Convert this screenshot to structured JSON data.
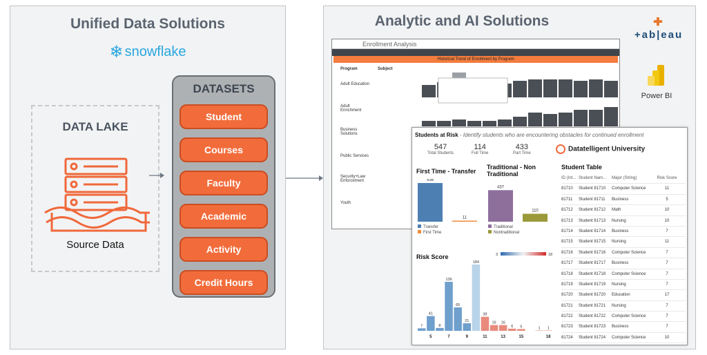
{
  "left_panel": {
    "title": "Unified Data Solutions",
    "brand": "snowflake",
    "lake_title": "DATA LAKE",
    "lake_caption": "Source Data",
    "datasets_title": "DATASETS",
    "datasets": [
      "Student",
      "Courses",
      "Faculty",
      "Academic",
      "Activity",
      "Credit Hours"
    ]
  },
  "right_panel": {
    "title": "Analytic and AI Solutions",
    "tools": [
      "+ab|eau",
      "Power BI"
    ]
  },
  "enrollment": {
    "title": "Enrollment Analysis",
    "banner": "Historical Trend of Enrollment by Program",
    "col_program": "Program",
    "col_subject": "Subject",
    "programs": [
      "Adult Education",
      "Adult Enrichment",
      "Business Solutions",
      "Public Services",
      "Security+Law Enforcement",
      "Youth"
    ]
  },
  "risk": {
    "header_bold": "Students at Risk",
    "header_note": " - Identify students who are encountering obstacles for continued enrollment",
    "kpis": [
      {
        "value": "547",
        "label": "Total Students"
      },
      {
        "value": "114",
        "label": "Full Time"
      },
      {
        "value": "433",
        "label": "Part Time"
      }
    ],
    "university": "Datatelligent University",
    "ft_title": "First Time - Transfer",
    "trad_title": "Traditional - Non Traditional",
    "risk_title": "Risk Score",
    "table_title": "Student Table",
    "legend_scale": [
      "3",
      "18"
    ]
  },
  "chart_data": [
    {
      "type": "bar",
      "title": "First Time - Transfer",
      "categories": [
        "Transfer",
        "First Time"
      ],
      "values": [
        536,
        11
      ],
      "colors": [
        "#4e7fb3",
        "#f28a3a"
      ]
    },
    {
      "type": "bar",
      "title": "Traditional - Non Traditional",
      "categories": [
        "Traditional",
        "Nontraditional"
      ],
      "values": [
        437,
        110
      ],
      "colors": [
        "#8e6f9c",
        "#9a9a3a"
      ]
    },
    {
      "type": "bar",
      "title": "Risk Score",
      "x": [
        4,
        5,
        6,
        7,
        8,
        9,
        10,
        11,
        12,
        13,
        14,
        15,
        16,
        17,
        18
      ],
      "values": [
        7,
        41,
        8,
        136,
        65,
        21,
        184,
        39,
        16,
        16,
        6,
        5,
        0,
        1,
        1
      ],
      "tick_labels": [
        "5",
        "7",
        "9",
        "11",
        "13",
        "15",
        "18"
      ]
    }
  ],
  "student_table": {
    "headers": [
      "ID (Int...",
      "Student Nam...",
      "Major (String)",
      "Risk Score"
    ],
    "rows": [
      [
        "81710",
        "Student 81710",
        "Computer Science",
        "11"
      ],
      [
        "81711",
        "Student 81711",
        "Business",
        "5"
      ],
      [
        "81712",
        "Student 81712",
        "Math",
        "10"
      ],
      [
        "81713",
        "Student 81713",
        "Nursing",
        "10"
      ],
      [
        "81714",
        "Student 81714",
        "Business",
        "7"
      ],
      [
        "81715",
        "Student 81715",
        "Nursing",
        "11"
      ],
      [
        "81716",
        "Student 81716",
        "Computer Science",
        "7"
      ],
      [
        "81717",
        "Student 81717",
        "Business",
        "7"
      ],
      [
        "81718",
        "Student 81718",
        "Computer Science",
        "7"
      ],
      [
        "81719",
        "Student 81719",
        "Nursing",
        "7"
      ],
      [
        "81720",
        "Student 81720",
        "Education",
        "17"
      ],
      [
        "81721",
        "Student 81721",
        "Nursing",
        "7"
      ],
      [
        "81722",
        "Student 81722",
        "Computer Science",
        "7"
      ],
      [
        "81723",
        "Student 81723",
        "Business",
        "7"
      ],
      [
        "81724",
        "Student 81724",
        "Computer Science",
        "10"
      ]
    ]
  }
}
